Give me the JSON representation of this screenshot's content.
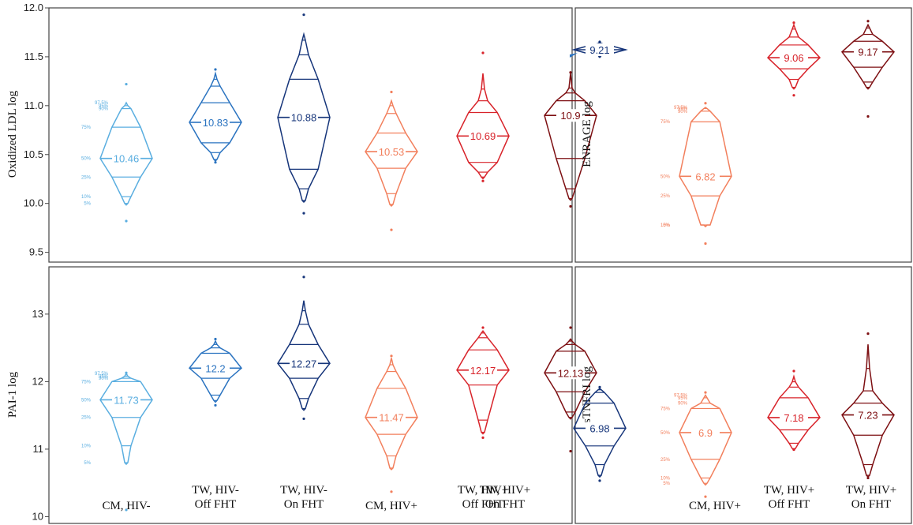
{
  "categories": [
    [
      "CM, HIV-"
    ],
    [
      "TW, HIV-",
      "Off FHT"
    ],
    [
      "TW, HIV-",
      "On FHT"
    ],
    [
      "CM, HIV+"
    ],
    [
      "TW, HIV+",
      "Off FHT"
    ],
    [
      "TW, HIV+",
      "On FHT"
    ]
  ],
  "colors": [
    "#5aaee0",
    "#2a73c0",
    "#16357a",
    "#f27f5c",
    "#d8232a",
    "#7d0f12"
  ],
  "percentile_labels": [
    "97.5%",
    "95%",
    "90%",
    "75%",
    "50%",
    "25%",
    "10%",
    "5%"
  ],
  "chart_data": [
    {
      "id": "oxldl",
      "type": "diamond-quantile",
      "ylabel": "Oxidized LDL log",
      "ylim": [
        9.4,
        12.0
      ],
      "yticks": [
        9.5,
        10.0,
        10.5,
        11.0,
        11.5,
        12.0
      ],
      "ytick_labels": [
        "9.5",
        "10.0",
        "10.5",
        "11.0",
        "11.5",
        "12.0"
      ],
      "show_categories": false,
      "series": [
        {
          "cat": 0,
          "median_label": "10.46",
          "show_percentile_labels": true,
          "q": [
            9.82,
            10.0,
            10.07,
            10.27,
            10.46,
            10.78,
            10.97,
            11.0,
            11.03,
            11.22
          ]
        },
        {
          "cat": 1,
          "median_label": "10.83",
          "q": [
            10.42,
            10.45,
            10.52,
            10.62,
            10.83,
            11.03,
            11.2,
            11.27,
            11.33,
            11.37
          ]
        },
        {
          "cat": 2,
          "median_label": "10.88",
          "q": [
            9.9,
            10.03,
            10.15,
            10.35,
            10.88,
            11.27,
            11.52,
            11.67,
            11.73,
            11.93
          ]
        },
        {
          "cat": 3,
          "median_label": "10.53",
          "q": [
            9.73,
            9.99,
            10.1,
            10.36,
            10.53,
            10.72,
            10.92,
            11.0,
            11.05,
            11.14
          ]
        },
        {
          "cat": 4,
          "median_label": "10.69",
          "q": [
            10.23,
            10.27,
            10.32,
            10.42,
            10.69,
            10.93,
            11.05,
            11.17,
            11.33,
            11.54
          ]
        },
        {
          "cat": 5,
          "median_label": "10.9",
          "q": [
            9.97,
            10.05,
            10.15,
            10.46,
            10.9,
            11.05,
            11.13,
            11.18,
            11.33,
            11.34
          ]
        }
      ]
    },
    {
      "id": "enrage",
      "type": "diamond-quantile",
      "ylabel": "ENRAGE log",
      "ylim": [
        5.2,
        10.0
      ],
      "show_categories": false,
      "series": [
        {
          "cat": 2,
          "median_label": "9.21",
          "q": [
            9.08,
            9.1,
            9.12,
            9.15,
            9.21,
            9.27,
            9.31,
            9.33,
            9.35,
            9.36
          ]
        },
        {
          "cat": 3,
          "median_label": "6.82",
          "show_percentile_labels": true,
          "q": [
            5.55,
            5.9,
            5.9,
            6.45,
            6.82,
            7.85,
            8.05,
            8.1,
            8.12,
            8.2
          ]
        },
        {
          "cat": 4,
          "median_label": "9.06",
          "q": [
            8.35,
            8.5,
            8.65,
            8.85,
            9.06,
            9.3,
            9.45,
            9.6,
            9.68,
            9.72
          ]
        },
        {
          "cat": 5,
          "median_label": "9.17",
          "q": [
            7.95,
            8.5,
            8.6,
            8.88,
            9.17,
            9.37,
            9.5,
            9.62,
            9.68,
            9.75
          ]
        }
      ]
    },
    {
      "id": "pai1",
      "type": "diamond-quantile",
      "ylabel": "PAI-1 log",
      "ylim": [
        9.9,
        13.7
      ],
      "yticks": [
        10,
        11,
        12,
        13
      ],
      "ytick_labels": [
        "10",
        "11",
        "12",
        "13"
      ],
      "show_categories": true,
      "series": [
        {
          "cat": 0,
          "median_label": "11.73",
          "show_percentile_labels": true,
          "q": [
            10.1,
            10.8,
            11.05,
            11.47,
            11.73,
            12.0,
            12.05,
            12.08,
            12.12,
            12.13
          ]
        },
        {
          "cat": 1,
          "median_label": "12.2",
          "q": [
            11.65,
            11.72,
            11.8,
            12.05,
            12.2,
            12.42,
            12.5,
            12.55,
            12.6,
            12.63
          ]
        },
        {
          "cat": 2,
          "median_label": "12.27",
          "q": [
            11.45,
            11.6,
            11.75,
            12.05,
            12.27,
            12.55,
            12.85,
            13.05,
            13.2,
            13.55
          ]
        },
        {
          "cat": 3,
          "median_label": "11.47",
          "q": [
            10.37,
            10.72,
            10.9,
            11.22,
            11.47,
            11.9,
            12.15,
            12.25,
            12.35,
            12.38
          ]
        },
        {
          "cat": 4,
          "median_label": "12.17",
          "q": [
            11.17,
            11.25,
            11.43,
            11.95,
            12.17,
            12.47,
            12.65,
            12.72,
            12.75,
            12.8
          ]
        },
        {
          "cat": 5,
          "median_label": "12.13",
          "q": [
            10.97,
            11.47,
            11.55,
            11.85,
            12.13,
            12.45,
            12.55,
            12.6,
            12.63,
            12.8
          ]
        }
      ]
    },
    {
      "id": "stnfr1",
      "type": "diamond-quantile",
      "ylabel": "sTNFRI log",
      "ylim": [
        5.2,
        10.0
      ],
      "show_categories": true,
      "series": [
        {
          "cat": 2,
          "median_label": "6.98",
          "q": [
            6.0,
            6.1,
            6.3,
            6.65,
            6.98,
            7.45,
            7.65,
            7.7,
            7.72,
            7.75
          ]
        },
        {
          "cat": 3,
          "median_label": "6.9",
          "show_percentile_labels": true,
          "q": [
            5.7,
            5.95,
            6.05,
            6.4,
            6.9,
            7.35,
            7.45,
            7.55,
            7.6,
            7.65
          ]
        },
        {
          "cat": 4,
          "median_label": "7.18",
          "q": [
            6.58,
            6.6,
            6.7,
            6.95,
            7.18,
            7.55,
            7.75,
            7.85,
            7.95,
            8.05
          ]
        },
        {
          "cat": 5,
          "median_label": "7.23",
          "q": [
            6.05,
            6.1,
            6.3,
            6.85,
            7.23,
            7.45,
            7.68,
            8.1,
            8.55,
            8.75
          ]
        }
      ]
    }
  ]
}
